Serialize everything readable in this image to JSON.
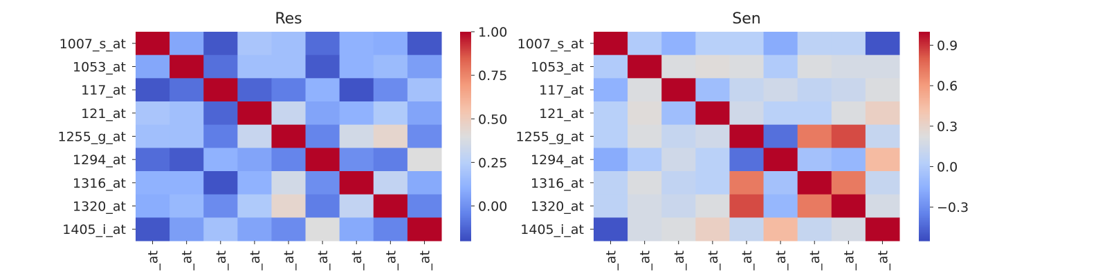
{
  "chart_data": [
    {
      "type": "heatmap",
      "title": "Res",
      "labels": [
        "1007_s_at",
        "1053_at",
        "117_at",
        "121_at",
        "1255_g_at",
        "1294_at",
        "1316_at",
        "1320_at",
        "1405_i_at"
      ],
      "x_tick_labels": [
        "_at",
        "_at",
        "_at",
        "_at",
        "_at",
        "_at",
        "_at",
        "_at",
        "_at"
      ],
      "matrix": [
        [
          1.0,
          0.07,
          -0.17,
          0.2,
          0.17,
          -0.11,
          0.11,
          0.09,
          -0.17
        ],
        [
          0.07,
          1.0,
          -0.1,
          0.17,
          0.17,
          -0.16,
          0.11,
          0.15,
          0.04
        ],
        [
          -0.17,
          -0.1,
          1.0,
          -0.13,
          -0.06,
          0.11,
          -0.18,
          -0.02,
          0.18
        ],
        [
          0.2,
          0.17,
          -0.13,
          1.0,
          0.31,
          0.06,
          0.11,
          0.22,
          0.06
        ],
        [
          0.17,
          0.17,
          -0.06,
          0.31,
          1.0,
          -0.04,
          0.35,
          0.45,
          -0.02
        ],
        [
          -0.11,
          -0.16,
          0.11,
          0.06,
          -0.04,
          1.0,
          -0.01,
          -0.06,
          0.4
        ],
        [
          0.11,
          0.11,
          -0.18,
          0.11,
          0.35,
          -0.01,
          1.0,
          0.29,
          0.08
        ],
        [
          0.09,
          0.14,
          -0.02,
          0.22,
          0.45,
          -0.06,
          0.29,
          1.0,
          -0.04
        ],
        [
          -0.17,
          0.04,
          0.18,
          0.06,
          -0.02,
          0.4,
          0.08,
          -0.04,
          1.0
        ]
      ],
      "vmin": -0.2,
      "vmax": 1.0,
      "colormap": "coolwarm",
      "colorbar_ticks": [
        "1.00",
        "0.75",
        "0.50",
        "0.25",
        "0.00"
      ],
      "colorbar_tick_values": [
        1.0,
        0.75,
        0.5,
        0.25,
        0.0
      ]
    },
    {
      "type": "heatmap",
      "title": "Sen",
      "labels": [
        "1007_s_at",
        "1053_at",
        "117_at",
        "121_at",
        "1255_g_at",
        "1294_at",
        "1316_at",
        "1320_at",
        "1405_i_at"
      ],
      "x_tick_labels": [
        "_at",
        "_at",
        "_at",
        "_at",
        "_at",
        "_at",
        "_at",
        "_at",
        "_at"
      ],
      "matrix": [
        [
          1.0,
          0.0,
          -0.15,
          0.03,
          0.03,
          -0.18,
          0.06,
          0.06,
          -0.52
        ],
        [
          0.0,
          1.0,
          0.21,
          0.24,
          0.21,
          0.0,
          0.21,
          0.18,
          0.18
        ],
        [
          -0.15,
          0.21,
          1.0,
          -0.08,
          0.1,
          0.15,
          0.08,
          0.12,
          0.21
        ],
        [
          0.03,
          0.24,
          -0.08,
          1.0,
          0.15,
          0.04,
          0.04,
          0.21,
          0.33
        ],
        [
          0.03,
          0.21,
          0.1,
          0.15,
          1.0,
          -0.42,
          0.72,
          0.85,
          0.1
        ],
        [
          -0.18,
          0.0,
          0.15,
          0.04,
          -0.42,
          1.0,
          -0.06,
          -0.12,
          0.46
        ],
        [
          0.06,
          0.21,
          0.08,
          0.04,
          0.72,
          -0.06,
          1.0,
          0.72,
          0.1
        ],
        [
          0.06,
          0.18,
          0.12,
          0.21,
          0.85,
          -0.12,
          0.72,
          1.0,
          0.18
        ],
        [
          -0.52,
          0.18,
          0.21,
          0.33,
          0.1,
          0.46,
          0.1,
          0.18,
          1.0
        ]
      ],
      "vmin": -0.55,
      "vmax": 1.0,
      "colormap": "coolwarm",
      "colorbar_ticks": [
        "0.9",
        "0.6",
        "0.3",
        "0.0",
        "−0.3"
      ],
      "colorbar_tick_values": [
        0.9,
        0.6,
        0.3,
        0.0,
        -0.3
      ]
    }
  ]
}
